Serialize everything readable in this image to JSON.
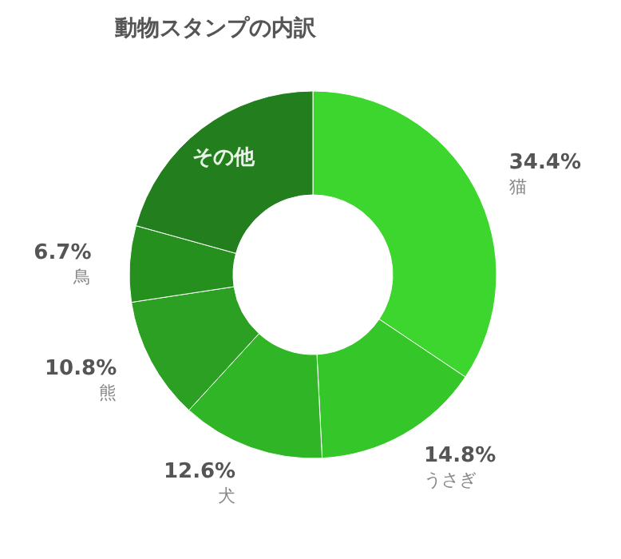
{
  "chart_data": {
    "type": "donut",
    "title": "動物スタンプの内訳",
    "categories": [
      "猫",
      "うさぎ",
      "犬",
      "熊",
      "鳥",
      "その他"
    ],
    "values": [
      34.4,
      14.8,
      12.6,
      10.8,
      6.7,
      20.7
    ],
    "value_labels": [
      "34.4%",
      "14.8%",
      "12.6%",
      "10.8%",
      "6.7%",
      null
    ],
    "colors": [
      "#3dd62f",
      "#35c72a",
      "#30b526",
      "#2ba022",
      "#26901e",
      "#237f1d"
    ]
  }
}
